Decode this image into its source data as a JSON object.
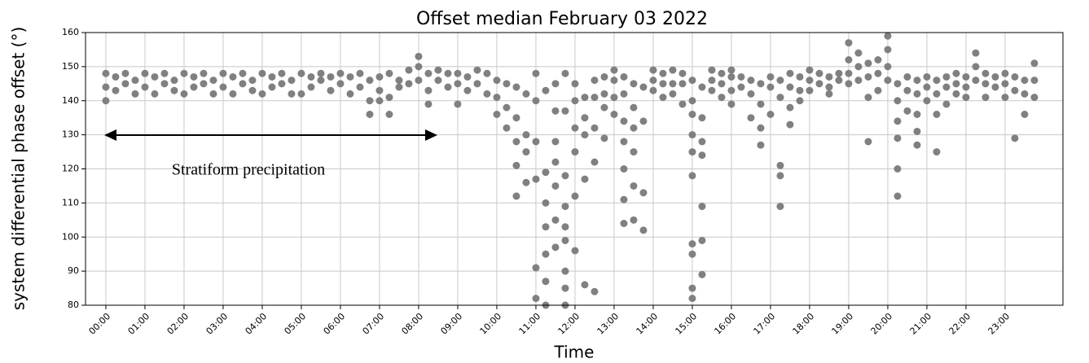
{
  "chart_data": {
    "type": "scatter",
    "title": "Offset median February 03 2022",
    "x_label": "Time",
    "y_label": "system differential phase offset (°)",
    "annotation": "Stratiform precipitation",
    "color": "#808080",
    "grid": true,
    "xlim": [
      -0.52,
      24.48
    ],
    "ylim": [
      80,
      160
    ],
    "yticks": [
      80,
      90,
      100,
      110,
      120,
      130,
      140,
      150,
      160
    ],
    "xticks": [
      {
        "value": 0,
        "label": "00:00"
      },
      {
        "value": 1,
        "label": "01:00"
      },
      {
        "value": 2,
        "label": "02:00"
      },
      {
        "value": 3,
        "label": "03:00"
      },
      {
        "value": 4,
        "label": "04:00"
      },
      {
        "value": 5,
        "label": "05:00"
      },
      {
        "value": 6,
        "label": "06:00"
      },
      {
        "value": 7,
        "label": "07:00"
      },
      {
        "value": 8,
        "label": "08:00"
      },
      {
        "value": 9,
        "label": "09:00"
      },
      {
        "value": 10,
        "label": "10:00"
      },
      {
        "value": 11,
        "label": "11:00"
      },
      {
        "value": 12,
        "label": "12:00"
      },
      {
        "value": 13,
        "label": "13:00"
      },
      {
        "value": 14,
        "label": "14:00"
      },
      {
        "value": 15,
        "label": "15:00"
      },
      {
        "value": 16,
        "label": "16:00"
      },
      {
        "value": 17,
        "label": "17:00"
      },
      {
        "value": 18,
        "label": "18:00"
      },
      {
        "value": 19,
        "label": "19:00"
      },
      {
        "value": 20,
        "label": "20:00"
      },
      {
        "value": 21,
        "label": "21:00"
      },
      {
        "value": 22,
        "label": "22:00"
      },
      {
        "value": 23,
        "label": "23:00"
      }
    ],
    "x": [
      0,
      0,
      0,
      0.25,
      0.25,
      0.5,
      0.5,
      0.75,
      0.75,
      1,
      1,
      1.25,
      1.25,
      1.5,
      1.5,
      1.75,
      1.75,
      2,
      2,
      2.25,
      2.25,
      2.5,
      2.5,
      2.75,
      2.75,
      3,
      3,
      3.25,
      3.25,
      3.5,
      3.5,
      3.75,
      3.75,
      4,
      4,
      4.25,
      4.25,
      4.5,
      4.5,
      4.75,
      4.75,
      5,
      5,
      5.25,
      5.25,
      5.5,
      5.5,
      5.75,
      5.75,
      6,
      6,
      6.25,
      6.25,
      6.5,
      6.5,
      6.75,
      6.75,
      6.75,
      7,
      7,
      7,
      7.25,
      7.25,
      7.25,
      7.5,
      7.5,
      7.75,
      7.75,
      8,
      8,
      8,
      8.25,
      8.25,
      8.25,
      8.5,
      8.5,
      8.75,
      8.75,
      9,
      9,
      9,
      9.25,
      9.25,
      9.5,
      9.5,
      9.75,
      9.75,
      10,
      10,
      10,
      10.25,
      10.25,
      10.25,
      10.5,
      10.5,
      10.5,
      10.5,
      10.5,
      10.75,
      10.75,
      10.75,
      10.75,
      11,
      11,
      11,
      11,
      11,
      11,
      11.25,
      11.25,
      11.25,
      11.25,
      11.25,
      11.25,
      11.25,
      11.5,
      11.5,
      11.5,
      11.5,
      11.5,
      11.5,
      11.5,
      11.75,
      11.75,
      11.75,
      11.75,
      11.75,
      11.75,
      11.75,
      11.75,
      11.75,
      12,
      12,
      12,
      12,
      12,
      12,
      12.25,
      12.25,
      12.25,
      12.25,
      12.25,
      12.5,
      12.5,
      12.5,
      12.5,
      12.5,
      12.75,
      12.75,
      12.75,
      12.75,
      13,
      13,
      13,
      13,
      13.25,
      13.25,
      13.25,
      13.25,
      13.25,
      13.25,
      13.25,
      13.5,
      13.5,
      13.5,
      13.5,
      13.5,
      13.5,
      13.75,
      13.75,
      13.75,
      13.75,
      14,
      14,
      14,
      14.25,
      14.25,
      14.25,
      14.5,
      14.5,
      14.5,
      14.75,
      14.75,
      14.75,
      15,
      15,
      15,
      15,
      15,
      15,
      15,
      15,
      15,
      15,
      15.25,
      15.25,
      15.25,
      15.25,
      15.25,
      15.25,
      15.25,
      15.5,
      15.5,
      15.5,
      15.75,
      15.75,
      15.75,
      16,
      16,
      16,
      16,
      16.25,
      16.25,
      16.5,
      16.5,
      16.5,
      16.75,
      16.75,
      16.75,
      16.75,
      17,
      17,
      17,
      17.25,
      17.25,
      17.25,
      17.25,
      17.25,
      17.5,
      17.5,
      17.5,
      17.5,
      17.75,
      17.75,
      17.75,
      18,
      18,
      18,
      18.25,
      18.25,
      18.5,
      18.5,
      18.5,
      18.75,
      18.75,
      19,
      19,
      19,
      19,
      19.25,
      19.25,
      19.25,
      19.5,
      19.5,
      19.5,
      19.5,
      19.75,
      19.75,
      19.75,
      20,
      20,
      20,
      20,
      20.25,
      20.25,
      20.25,
      20.25,
      20.25,
      20.25,
      20.5,
      20.5,
      20.5,
      20.75,
      20.75,
      20.75,
      20.75,
      20.75,
      21,
      21,
      21,
      21.25,
      21.25,
      21.25,
      21.25,
      21.5,
      21.5,
      21.5,
      21.75,
      21.75,
      21.75,
      22,
      22,
      22,
      22.25,
      22.25,
      22.25,
      22.5,
      22.5,
      22.5,
      22.75,
      22.75,
      23,
      23,
      23,
      23.25,
      23.25,
      23.25,
      23.5,
      23.5,
      23.5,
      23.75,
      23.75,
      23.75
    ],
    "values": [
      148,
      144,
      140,
      147,
      143,
      148,
      145,
      146,
      142,
      148,
      144,
      147,
      142,
      148,
      145,
      146,
      143,
      148,
      142,
      147,
      144,
      148,
      145,
      146,
      142,
      148,
      144,
      147,
      142,
      148,
      145,
      146,
      143,
      148,
      142,
      147,
      144,
      148,
      145,
      146,
      142,
      148,
      142,
      147,
      144,
      148,
      146,
      147,
      143,
      148,
      145,
      147,
      142,
      148,
      144,
      146,
      140,
      136,
      147,
      143,
      140,
      148,
      141,
      136,
      146,
      144,
      149,
      145,
      150,
      146,
      153,
      148,
      143,
      139,
      149,
      146,
      148,
      144,
      148,
      145,
      139,
      147,
      143,
      149,
      145,
      148,
      142,
      146,
      141,
      136,
      145,
      138,
      132,
      144,
      135,
      128,
      121,
      112,
      142,
      130,
      125,
      116,
      148,
      140,
      128,
      117,
      91,
      82,
      143,
      119,
      110,
      103,
      95,
      87,
      80,
      145,
      137,
      128,
      122,
      115,
      105,
      97,
      148,
      137,
      118,
      109,
      103,
      99,
      90,
      85,
      80,
      145,
      140,
      132,
      125,
      112,
      96,
      141,
      135,
      130,
      117,
      86,
      146,
      141,
      132,
      122,
      84,
      147,
      142,
      138,
      129,
      149,
      146,
      141,
      136,
      147,
      142,
      134,
      128,
      120,
      111,
      104,
      145,
      138,
      132,
      125,
      115,
      105,
      144,
      134,
      113,
      102,
      149,
      146,
      143,
      148,
      145,
      141,
      149,
      145,
      142,
      148,
      145,
      139,
      146,
      140,
      136,
      130,
      125,
      118,
      98,
      95,
      85,
      82,
      144,
      135,
      128,
      124,
      109,
      99,
      89,
      149,
      146,
      143,
      148,
      145,
      141,
      149,
      147,
      143,
      139,
      147,
      144,
      146,
      142,
      135,
      145,
      139,
      132,
      127,
      147,
      144,
      136,
      146,
      141,
      121,
      118,
      109,
      148,
      144,
      138,
      133,
      147,
      143,
      140,
      149,
      146,
      143,
      148,
      145,
      147,
      144,
      142,
      148,
      146,
      157,
      152,
      148,
      145,
      154,
      150,
      146,
      151,
      147,
      141,
      128,
      152,
      148,
      143,
      159,
      155,
      150,
      146,
      145,
      140,
      134,
      129,
      120,
      112,
      147,
      143,
      137,
      146,
      142,
      136,
      131,
      127,
      147,
      144,
      140,
      146,
      142,
      136,
      125,
      147,
      144,
      139,
      148,
      145,
      142,
      147,
      144,
      141,
      154,
      150,
      146,
      148,
      145,
      141,
      147,
      144,
      148,
      145,
      141,
      147,
      143,
      129,
      146,
      142,
      136,
      151,
      146,
      141
    ]
  }
}
